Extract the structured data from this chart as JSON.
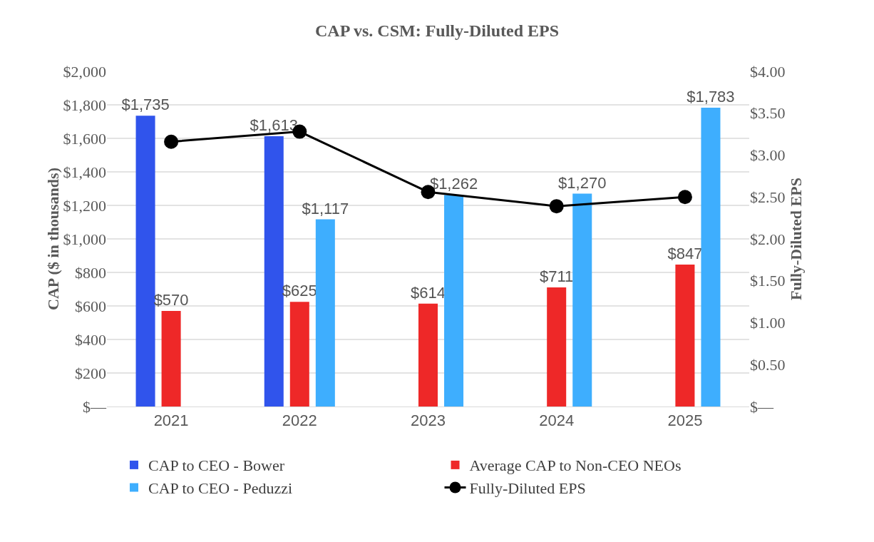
{
  "chart_data": {
    "type": "bar",
    "title": "CAP vs. CSM: Fully-Diluted EPS",
    "ylabel": "CAP ($ in thousands)",
    "y2label": "Fully-Diluted EPS",
    "categories": [
      "2021",
      "2022",
      "2023",
      "2024",
      "2025"
    ],
    "series": [
      {
        "name": "CAP to CEO - Bower",
        "color": "#3054ec",
        "values": [
          1735,
          1613,
          null,
          null,
          null
        ],
        "value_labels": [
          "$1,735",
          "$1,613",
          null,
          null,
          null
        ]
      },
      {
        "name": "Average CAP to Non-CEO NEOs",
        "color": "#ee2828",
        "values": [
          570,
          625,
          614,
          711,
          847
        ],
        "value_labels": [
          "$570",
          "$625",
          "$614",
          "$711",
          "$847"
        ]
      },
      {
        "name": "CAP to CEO - Peduzzi",
        "color": "#3eaefe",
        "values": [
          null,
          1117,
          1262,
          1270,
          1783
        ],
        "value_labels": [
          null,
          "$1,117",
          "$1,262",
          "$1,270",
          "$1,783"
        ]
      },
      {
        "name": "Fully-Diluted EPS",
        "type": "line",
        "axis": "y2",
        "color": "#000000",
        "marker": "circle",
        "line_style": "solid",
        "values": [
          3.16,
          3.28,
          2.56,
          2.39,
          2.5
        ]
      }
    ],
    "ylim": [
      0,
      2000
    ],
    "yticks": [
      {
        "value": 0,
        "label": "$—"
      },
      {
        "value": 200,
        "label": "$200"
      },
      {
        "value": 400,
        "label": "$400"
      },
      {
        "value": 600,
        "label": "$600"
      },
      {
        "value": 800,
        "label": "$800"
      },
      {
        "value": 1000,
        "label": "$1,000"
      },
      {
        "value": 1200,
        "label": "$1,200"
      },
      {
        "value": 1400,
        "label": "$1,400"
      },
      {
        "value": 1600,
        "label": "$1,600"
      },
      {
        "value": 1800,
        "label": "$1,800"
      },
      {
        "value": 2000,
        "label": "$2,000"
      }
    ],
    "y2lim": [
      0,
      4
    ],
    "y2ticks": [
      {
        "value": 0,
        "label": "$—"
      },
      {
        "value": 0.5,
        "label": "$0.50"
      },
      {
        "value": 1,
        "label": "$1.00"
      },
      {
        "value": 1.5,
        "label": "$1.50"
      },
      {
        "value": 2,
        "label": "$2.00"
      },
      {
        "value": 2.5,
        "label": "$2.50"
      },
      {
        "value": 3,
        "label": "$3.00"
      },
      {
        "value": 3.5,
        "label": "$3.50"
      },
      {
        "value": 4,
        "label": "$4.00"
      }
    ],
    "grid": "y",
    "legend": "bottom"
  }
}
